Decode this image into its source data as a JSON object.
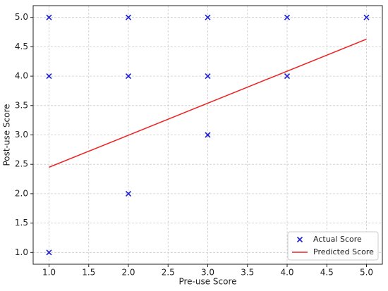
{
  "chart_data": {
    "type": "scatter",
    "xlabel": "Pre-use Score",
    "ylabel": "Post-use Score",
    "xlim": [
      0.8,
      5.2
    ],
    "ylim": [
      0.8,
      5.2
    ],
    "xticks": [
      {
        "value": 1,
        "label": "1.0"
      },
      {
        "value": 1.5,
        "label": "1.5"
      },
      {
        "value": 2,
        "label": "2.0"
      },
      {
        "value": 2.5,
        "label": "2.5"
      },
      {
        "value": 3,
        "label": "3.0"
      },
      {
        "value": 3.5,
        "label": "3.5"
      },
      {
        "value": 4,
        "label": "4.0"
      },
      {
        "value": 4.5,
        "label": "4.5"
      },
      {
        "value": 5,
        "label": "5.0"
      }
    ],
    "yticks": [
      {
        "value": 1,
        "label": "1.0"
      },
      {
        "value": 1.5,
        "label": "1.5"
      },
      {
        "value": 2,
        "label": "2.0"
      },
      {
        "value": 2.5,
        "label": "2.5"
      },
      {
        "value": 3,
        "label": "3.0"
      },
      {
        "value": 3.5,
        "label": "3.5"
      },
      {
        "value": 4,
        "label": "4.0"
      },
      {
        "value": 4.5,
        "label": "4.5"
      },
      {
        "value": 5,
        "label": "5.0"
      }
    ],
    "grid": true,
    "legend": "lower right",
    "series": [
      {
        "name": "Actual Score",
        "color": "#1f1fd6",
        "x": [
          1,
          1,
          1,
          2,
          2,
          2,
          3,
          3,
          3,
          4,
          4,
          5
        ],
        "values": [
          5,
          4,
          1,
          5,
          4,
          2,
          5,
          4,
          3,
          5,
          4,
          5
        ]
      },
      {
        "name": "Predicted Score",
        "type": "line",
        "color": "#ee2222",
        "x": [
          1,
          5
        ],
        "values": [
          2.45,
          4.63
        ]
      }
    ]
  }
}
